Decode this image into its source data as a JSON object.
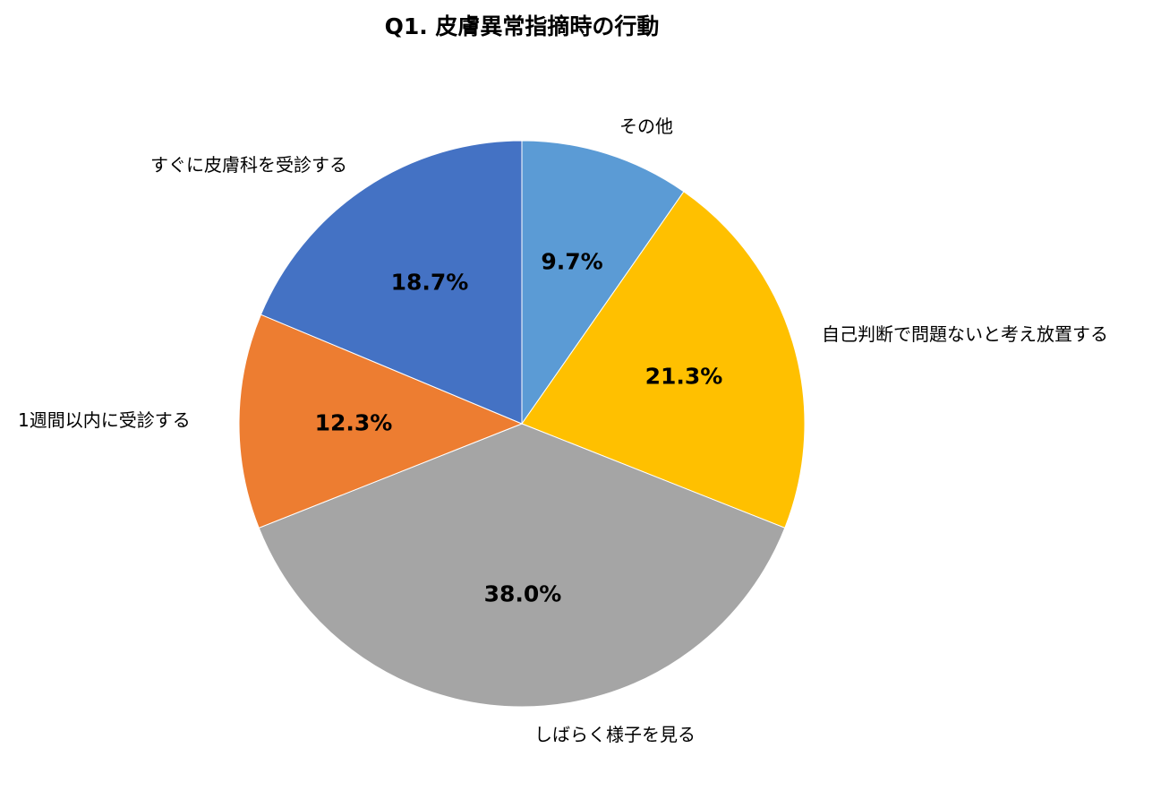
{
  "chart_data": {
    "type": "pie",
    "title": "Q1. 皮膚異常指摘時の行動",
    "start_angle_deg": 0,
    "direction": "clockwise",
    "slices": [
      {
        "label": "その他",
        "value": 9.7,
        "value_label": "9.7%",
        "color": "#5B9BD5"
      },
      {
        "label": "自己判断で問題ないと考え放置する",
        "value": 21.3,
        "value_label": "21.3%",
        "color": "#FFC000"
      },
      {
        "label": "しばらく様子を見る",
        "value": 38.0,
        "value_label": "38.0%",
        "color": "#A5A5A5"
      },
      {
        "label": "1週間以内に受診する",
        "value": 12.3,
        "value_label": "12.3%",
        "color": "#ED7D31"
      },
      {
        "label": "すぐに皮膚科を受診する",
        "value": 18.7,
        "value_label": "18.7%",
        "color": "#4472C4"
      }
    ]
  }
}
